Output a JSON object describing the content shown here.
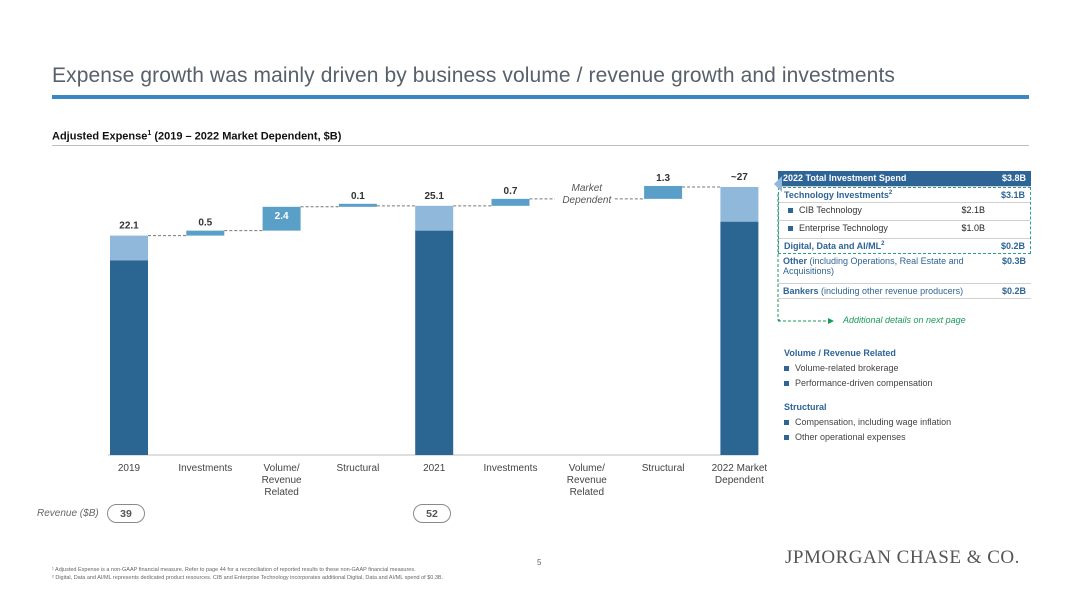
{
  "page": {
    "title": "Expense growth was mainly driven by business volume / revenue growth and investments",
    "subtitle": "Adjusted Expense",
    "subtitle_sup": "1",
    "subtitle_rest": " (2019 – 2022 Market Dependent, $B)",
    "page_number": "5",
    "logo": "JPMORGAN CHASE & CO.",
    "footnotes": [
      "¹ Adjusted Expense is a non-GAAP financial measure. Refer to page 44 for a reconciliation of reported results to these non-GAAP financial measures.",
      "² Digital, Data and AI/ML represents dedicated product resources. CIB and Enterprise Technology incorporates additional Digital, Data and AI/ML spend of $0.3B."
    ]
  },
  "chart_data": {
    "type": "bar",
    "subtype": "waterfall",
    "categories": [
      "2019",
      "Investments",
      "Volume/ Revenue Related",
      "Structural",
      "2021",
      "Investments",
      "Volume/ Revenue Related",
      "Structural",
      "2022 Market Dependent"
    ],
    "steps": [
      {
        "category": "2019",
        "kind": "total",
        "value": 22.1,
        "label": "22.1"
      },
      {
        "category": "Investments",
        "kind": "delta",
        "value": 0.5,
        "label": "0.5"
      },
      {
        "category": "Volume/ Revenue Related",
        "kind": "delta",
        "value": 2.4,
        "label": "2.4"
      },
      {
        "category": "Structural",
        "kind": "delta",
        "value": 0.1,
        "label": "0.1"
      },
      {
        "category": "2021",
        "kind": "total",
        "value": 25.1,
        "label": "25.1"
      },
      {
        "category": "Investments",
        "kind": "delta",
        "value": 0.7,
        "label": "0.7"
      },
      {
        "category": "Volume/ Revenue Related",
        "kind": "delta_market",
        "value": 0.0,
        "label": "Market Dependent"
      },
      {
        "category": "Structural",
        "kind": "delta",
        "value": 1.3,
        "label": "1.3"
      },
      {
        "category": "2022 Market Dependent",
        "kind": "total",
        "value": 27,
        "label": "~27"
      }
    ],
    "colors": {
      "dark": "#2b6592",
      "light": "#8fb8db",
      "delta": "#5a9fc8",
      "connector": "#777777"
    },
    "grid": false,
    "legend": "none"
  },
  "revenue": {
    "label": "Revenue ($B)",
    "values": [
      "39",
      "52"
    ]
  },
  "investment_panel": {
    "header_label": "2022 Total Investment Spend",
    "header_value": "$3.8B",
    "rows": [
      {
        "label": "Technology Investments",
        "sup": "2",
        "value": "$3.1B"
      },
      {
        "label": "CIB Technology",
        "mid": "$2.1B"
      },
      {
        "label": "Enterprise Technology",
        "mid": "$1.0B"
      },
      {
        "label": "Digital, Data and AI/ML",
        "sup": "2",
        "value": "$0.2B"
      },
      {
        "label": "Other",
        "note": " (including Operations, Real Estate and Acquisitions)",
        "value": "$0.3B"
      },
      {
        "label": "Bankers",
        "note": " (including other revenue producers)",
        "value": "$0.2B"
      }
    ],
    "additional_details": "Additional details on next page"
  },
  "legend_sections": [
    {
      "heading": "Volume / Revenue Related",
      "items": [
        "Volume-related brokerage",
        "Performance-driven compensation"
      ]
    },
    {
      "heading": "Structural",
      "items": [
        "Compensation, including wage inflation",
        "Other operational expenses"
      ]
    }
  ]
}
